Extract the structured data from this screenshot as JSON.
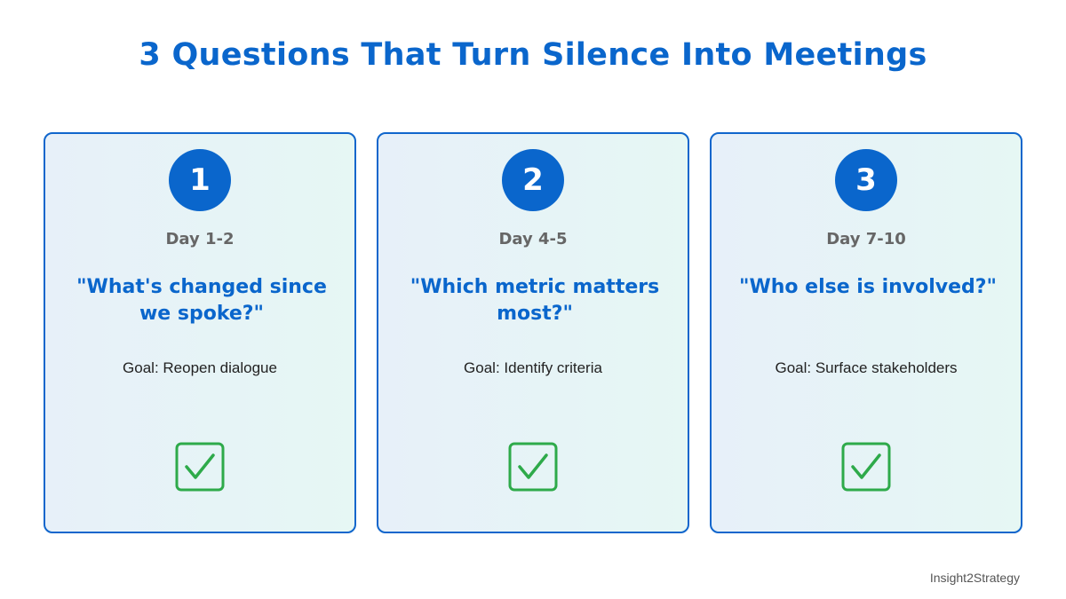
{
  "title": "3 Questions That Turn Silence Into Meetings",
  "cards": [
    {
      "number": "1",
      "day": "Day 1-2",
      "question": "\"What's changed since we spoke?\"",
      "goal": "Goal: Reopen dialogue",
      "icon": "checkbox-checked-icon"
    },
    {
      "number": "2",
      "day": "Day 4-5",
      "question": "\"Which metric matters most?\"",
      "goal": "Goal: Identify criteria",
      "icon": "checkbox-checked-icon"
    },
    {
      "number": "3",
      "day": "Day 7-10",
      "question": "\"Who else is involved?\"",
      "goal": "Goal: Surface stakeholders",
      "icon": "checkbox-checked-icon"
    }
  ],
  "brand": "Insight2Strategy",
  "colors": {
    "accent": "#0a66cc",
    "check": "#2eaa4a",
    "muted_text": "#666666"
  }
}
